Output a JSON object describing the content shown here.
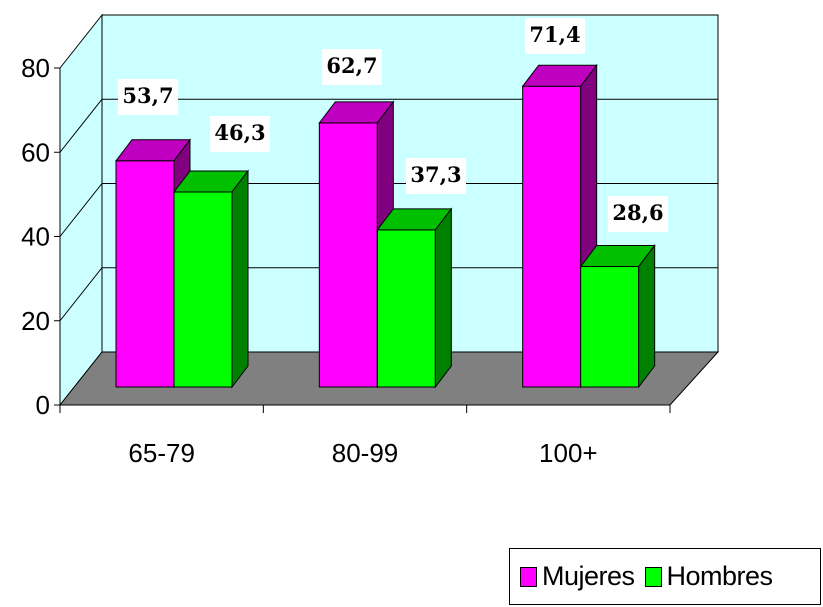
{
  "chart_data": {
    "type": "bar",
    "categories": [
      "65-79",
      "80-99",
      "100+"
    ],
    "series": [
      {
        "name": "Mujeres",
        "values": [
          53.7,
          62.7,
          71.4
        ],
        "labels": [
          "53,7",
          "62,7",
          "71,4"
        ],
        "color": "#FF00FF",
        "top_color": "#C000C0",
        "side_color": "#800080"
      },
      {
        "name": "Hombres",
        "values": [
          46.3,
          37.3,
          28.6
        ],
        "labels": [
          "46,3",
          "37,3",
          "28,6"
        ],
        "color": "#00FF00",
        "top_color": "#00C000",
        "side_color": "#008000"
      }
    ],
    "yticks": [
      "0",
      "20",
      "40",
      "60",
      "80"
    ],
    "ylim": [
      0,
      80
    ],
    "grid": true,
    "three_d": true,
    "wall_color": "#CCFFFF",
    "floor_color": "#808080",
    "legend_position": "bottom-right"
  }
}
